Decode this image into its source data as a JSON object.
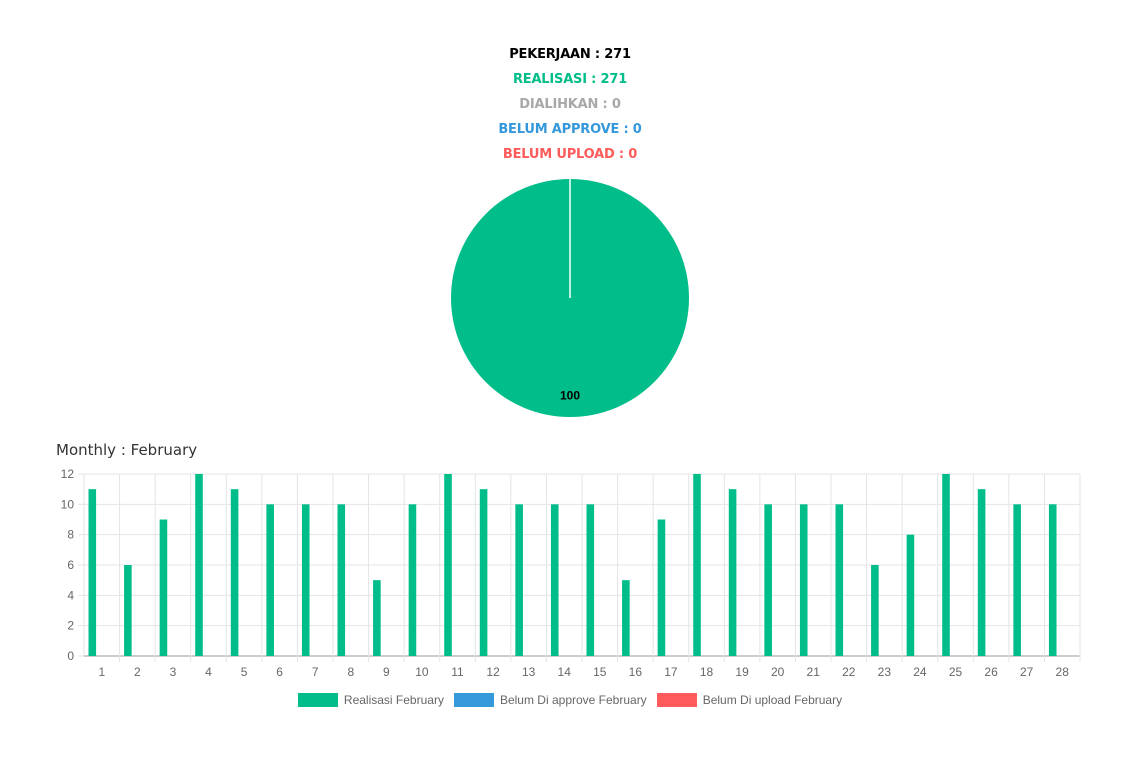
{
  "summary": {
    "pekerjaan": "PEKERJAAN : 271",
    "realisasi": "REALISASI : 271",
    "dialihkan": "DIALIHKAN : 0",
    "belum_approve": "BELUM APPROVE : 0",
    "belum_upload": "BELUM UPLOAD : 0"
  },
  "colors": {
    "pekerjaan": "#000000",
    "realisasi": "#00bd8a",
    "dialihkan": "#a8a8a8",
    "belum_approve": "#3498db",
    "belum_upload": "#ff5b5b",
    "grid": "#e5e5e5",
    "tick": "#666666"
  },
  "monthly_title": "Monthly : February",
  "chart_data": [
    {
      "type": "pie",
      "slices": [
        {
          "value": 100,
          "label": "100",
          "color": "#00bd8a"
        }
      ]
    },
    {
      "type": "bar",
      "categories": [
        "1",
        "2",
        "3",
        "4",
        "5",
        "6",
        "7",
        "8",
        "9",
        "10",
        "11",
        "12",
        "13",
        "14",
        "15",
        "16",
        "17",
        "18",
        "19",
        "20",
        "21",
        "22",
        "23",
        "24",
        "25",
        "26",
        "27",
        "28"
      ],
      "series": [
        {
          "name": "Realisasi February",
          "color": "#00bd8a",
          "values": [
            11,
            6,
            9,
            12,
            11,
            10,
            10,
            10,
            5,
            10,
            12,
            11,
            10,
            10,
            10,
            5,
            9,
            12,
            11,
            10,
            10,
            10,
            6,
            8,
            12,
            11,
            10,
            10
          ]
        },
        {
          "name": "Belum Di approve February",
          "color": "#3498db",
          "values": [
            0,
            0,
            0,
            0,
            0,
            0,
            0,
            0,
            0,
            0,
            0,
            0,
            0,
            0,
            0,
            0,
            0,
            0,
            0,
            0,
            0,
            0,
            0,
            0,
            0,
            0,
            0,
            0
          ]
        },
        {
          "name": "Belum Di upload February",
          "color": "#ff5b5b",
          "values": [
            0,
            0,
            0,
            0,
            0,
            0,
            0,
            0,
            0,
            0,
            0,
            0,
            0,
            0,
            0,
            0,
            0,
            0,
            0,
            0,
            0,
            0,
            0,
            0,
            0,
            0,
            0,
            0
          ]
        }
      ],
      "ylim": [
        0,
        12
      ],
      "yticks": [
        0,
        2,
        4,
        6,
        8,
        10,
        12
      ],
      "grid": true,
      "legend_position": "bottom"
    }
  ]
}
